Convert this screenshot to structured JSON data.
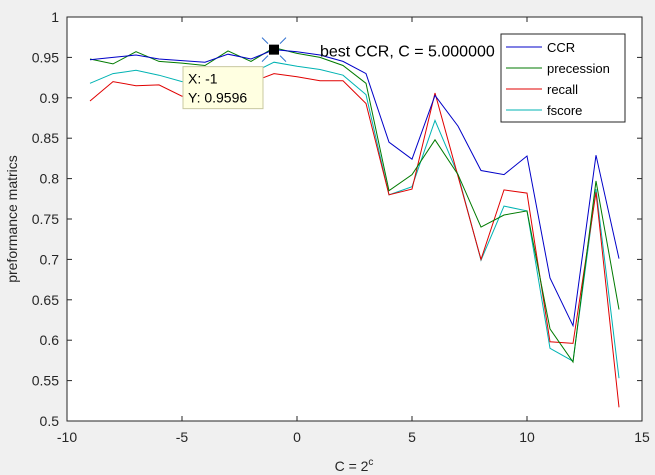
{
  "chart_data": {
    "type": "line",
    "xlabel": "C = 2",
    "xlabel_sup": "c",
    "ylabel": "preformance matrics",
    "xlim": [
      -10,
      15
    ],
    "ylim": [
      0.5,
      1
    ],
    "xticks": [
      "-10",
      "-5",
      "0",
      "5",
      "10",
      "15"
    ],
    "xtick_values": [
      -10,
      -5,
      0,
      5,
      10,
      15
    ],
    "yticks": [
      "0.5",
      "0.55",
      "0.6",
      "0.65",
      "0.7",
      "0.75",
      "0.8",
      "0.85",
      "0.9",
      "0.95",
      "1"
    ],
    "ytick_values": [
      0.5,
      0.55,
      0.6,
      0.65,
      0.7,
      0.75,
      0.8,
      0.85,
      0.9,
      0.95,
      1.0
    ],
    "grid": false,
    "legend_position": "top-right",
    "x": [
      -9,
      -8,
      -7,
      -6,
      -5,
      -4,
      -3,
      -2,
      -1,
      0,
      1,
      2,
      3,
      4,
      5,
      6,
      7,
      8,
      9,
      10,
      11,
      12,
      13,
      14
    ],
    "series": [
      {
        "name": "CCR",
        "color": "#0000c8",
        "values": [
          0.947,
          0.95,
          0.953,
          0.948,
          0.946,
          0.944,
          0.954,
          0.948,
          0.9596,
          0.957,
          0.953,
          0.945,
          0.93,
          0.845,
          0.824,
          0.903,
          0.865,
          0.81,
          0.805,
          0.828,
          0.677,
          0.618,
          0.829,
          0.701
        ]
      },
      {
        "name": "precession",
        "color": "#007a00",
        "values": [
          0.948,
          0.942,
          0.957,
          0.945,
          0.943,
          0.94,
          0.958,
          0.945,
          0.962,
          0.955,
          0.95,
          0.94,
          0.918,
          0.785,
          0.805,
          0.848,
          0.805,
          0.74,
          0.755,
          0.76,
          0.614,
          0.573,
          0.797,
          0.638
        ]
      },
      {
        "name": "recall",
        "color": "#e00000",
        "values": [
          0.896,
          0.92,
          0.915,
          0.916,
          0.902,
          0.908,
          0.92,
          0.919,
          0.93,
          0.926,
          0.921,
          0.921,
          0.893,
          0.78,
          0.787,
          0.906,
          0.803,
          0.7,
          0.786,
          0.782,
          0.598,
          0.596,
          0.783,
          0.517
        ]
      },
      {
        "name": "fscore",
        "color": "#00b3b3",
        "values": [
          0.918,
          0.93,
          0.934,
          0.928,
          0.92,
          0.922,
          0.936,
          0.93,
          0.944,
          0.939,
          0.935,
          0.928,
          0.904,
          0.78,
          0.79,
          0.872,
          0.805,
          0.699,
          0.766,
          0.76,
          0.59,
          0.574,
          0.787,
          0.553
        ]
      }
    ],
    "annotations": {
      "best_label": "best CCR, C = 5.000000",
      "best_point": {
        "x": -1,
        "y": 0.9596
      },
      "datatip_x": "X: -1",
      "datatip_y": "Y: 0.9596"
    }
  }
}
